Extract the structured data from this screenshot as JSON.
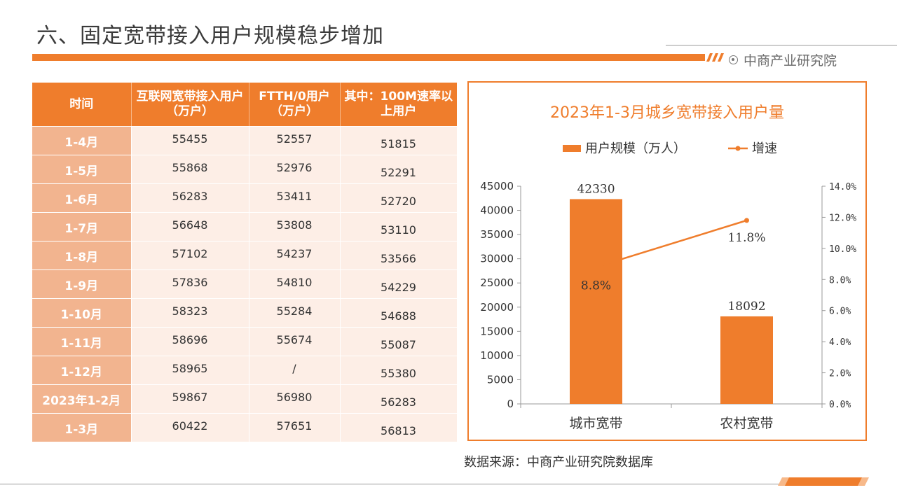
{
  "header": {
    "title": "六、固定宽带接入用户规模稳步增加",
    "brand": "中商产业研究院"
  },
  "table": {
    "headers": [
      "时间",
      "互联网宽带接入用户（万户）",
      "FTTH/0用户（万户）",
      "其中：100M速率以上用户"
    ],
    "rows": [
      [
        "1-4月",
        "55455",
        "52557",
        "51815"
      ],
      [
        "1-5月",
        "55868",
        "52976",
        "52291"
      ],
      [
        "1-6月",
        "56283",
        "53411",
        "52720"
      ],
      [
        "1-7月",
        "56648",
        "53808",
        "53110"
      ],
      [
        "1-8月",
        "57102",
        "54237",
        "53566"
      ],
      [
        "1-9月",
        "57836",
        "54810",
        "54229"
      ],
      [
        "1-10月",
        "58323",
        "55284",
        "54688"
      ],
      [
        "1-11月",
        "58696",
        "55674",
        "55087"
      ],
      [
        "1-12月",
        "58965",
        "/",
        "55380"
      ],
      [
        "2023年1-2月",
        "59867",
        "56980",
        "56283"
      ],
      [
        "1-3月",
        "60422",
        "57651",
        "56813"
      ]
    ]
  },
  "chart_data": {
    "type": "bar",
    "title": "2023年1-3月城乡宽带接入用户量",
    "categories": [
      "城市宽带",
      "农村宽带"
    ],
    "series": [
      {
        "name": "用户规模（万人）",
        "type": "bar",
        "values": [
          42330,
          18092
        ],
        "labels": [
          "42330",
          "18092"
        ],
        "axis": "left"
      },
      {
        "name": "增速",
        "type": "line",
        "values": [
          8.8,
          11.8
        ],
        "labels": [
          "8.8%",
          "11.8%"
        ],
        "axis": "right"
      }
    ],
    "y_left": {
      "min": 0,
      "max": 45000,
      "step": 5000,
      "ticks": [
        "0",
        "5000",
        "10000",
        "15000",
        "20000",
        "25000",
        "30000",
        "35000",
        "40000",
        "45000"
      ]
    },
    "y_right": {
      "min": 0,
      "max": 14,
      "step": 2,
      "ticks": [
        "0.0%",
        "2.0%",
        "4.0%",
        "6.0%",
        "8.0%",
        "10.0%",
        "12.0%",
        "14.0%"
      ]
    },
    "legend_position": "top",
    "colors": {
      "bar": "#ef7d2c",
      "line": "#ef7d2c",
      "axis": "#999999"
    }
  },
  "footer": {
    "source": "数据来源：中商产业研究院数据库"
  }
}
